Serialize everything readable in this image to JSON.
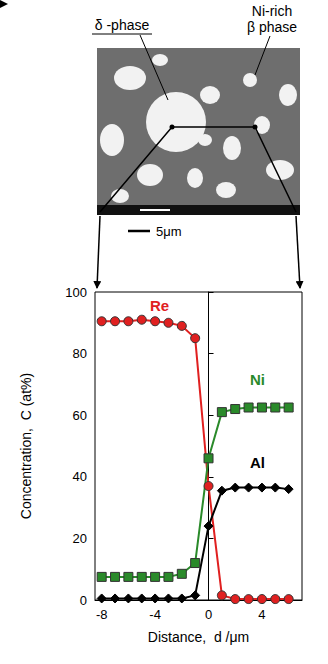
{
  "figure": {
    "labels": [
      "δ -phase",
      "Ni-rich β phase"
    ],
    "scale_bar": "5μm"
  },
  "chart_data": {
    "type": "line",
    "x_label": "Distance,  d /μm",
    "y_label": "Concentration,  C (at%)",
    "xlim": [
      -8.5,
      7
    ],
    "xticks": [
      -8,
      -4,
      0,
      4
    ],
    "ylim": [
      0,
      100
    ],
    "yticks": [
      0,
      20,
      40,
      60,
      80,
      100
    ],
    "grid": false,
    "x": [
      -8,
      -7,
      -6,
      -5,
      -4,
      -3,
      -2,
      -1,
      0,
      1,
      2,
      3,
      4,
      5,
      6
    ],
    "series": [
      {
        "name": "Re",
        "color": "#e02020",
        "marker": "circle",
        "values": [
          90.5,
          90.5,
          90.5,
          91,
          90.5,
          90,
          89,
          85,
          37,
          1.5,
          0.3,
          0.3,
          0.3,
          0.3,
          0.3
        ]
      },
      {
        "name": "Ni",
        "color": "#2a8a2a",
        "marker": "square",
        "values": [
          7.5,
          7.5,
          7.5,
          7.5,
          7.5,
          7.5,
          8.5,
          12,
          46,
          61,
          62,
          62.5,
          62.5,
          62.5,
          62.5
        ]
      },
      {
        "name": "Al",
        "color": "#000000",
        "marker": "diamond",
        "values": [
          0.5,
          0.5,
          0.5,
          0.5,
          0.5,
          0.5,
          0.5,
          1.5,
          24,
          35.5,
          36.5,
          36.5,
          36.5,
          36.5,
          36
        ]
      }
    ]
  }
}
